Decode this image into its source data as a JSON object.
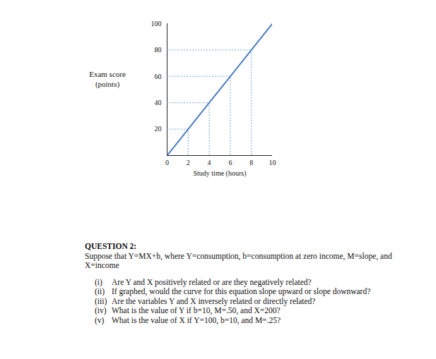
{
  "chart_data": {
    "type": "line",
    "xlabel": "Study time (hours)",
    "ylabel": "Exam score\n(points)",
    "x": [
      0,
      2,
      4,
      6,
      8,
      10
    ],
    "values": [
      0,
      20,
      40,
      60,
      80,
      100
    ],
    "color": "#4a7ec3",
    "xlim": [
      0,
      10
    ],
    "ylim": [
      0,
      100
    ],
    "xticks": [
      0,
      2,
      4,
      6,
      8,
      10
    ],
    "yticks": [
      20,
      40,
      60,
      80,
      100
    ],
    "grid": false
  },
  "question": {
    "heading": "QUESTION 2:",
    "intro": "Suppose that Y=MX+b, where Y=consumption, b=consumption at zero income, M=slope, and X=income",
    "items": [
      {
        "label": "(i)",
        "text": "Are Y and X positively related or are they negatively related?"
      },
      {
        "label": "(ii)",
        "text": "If graphed, would the curve for this equation slope upward or slope downward?"
      },
      {
        "label": "(iii)",
        "text": "Are the variables Y and X inversely related or directly related?"
      },
      {
        "label": "(iv)",
        "text": "What is the value of Y if b=10, M=.50, and X=200?"
      },
      {
        "label": "(v)",
        "text": "What is the value of X if Y=100, b=10, and M=.25?"
      }
    ]
  }
}
